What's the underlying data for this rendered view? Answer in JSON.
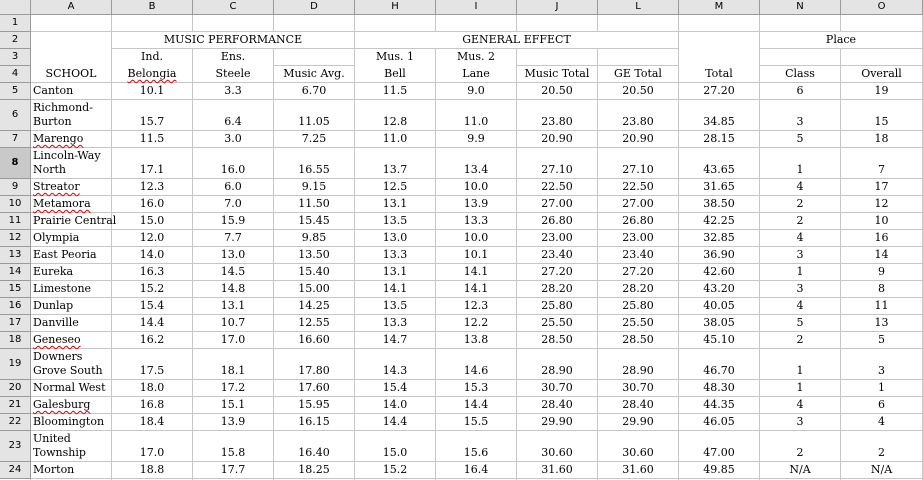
{
  "columns": [
    "A",
    "B",
    "C",
    "D",
    "H",
    "I",
    "J",
    "L",
    "M",
    "N",
    "O"
  ],
  "rows": [
    "1",
    "2",
    "3",
    "4",
    "5",
    "6",
    "7",
    "8",
    "9",
    "10",
    "11",
    "12",
    "13",
    "14",
    "15",
    "16",
    "17",
    "18",
    "19",
    "20",
    "21",
    "22",
    "23",
    "24"
  ],
  "selected_row": "8",
  "headers": {
    "music_performance": "MUSIC PERFORMANCE",
    "general_effect": "GENERAL EFFECT",
    "place": "Place",
    "ind": "Ind.",
    "ens": "Ens.",
    "mus1": "Mus. 1",
    "mus2": "Mus. 2",
    "school": "SCHOOL",
    "belongia": "Belongia",
    "steele": "Steele",
    "music_avg": "Music Avg.",
    "bell": "Bell",
    "lane": "Lane",
    "music_total": "Music Total",
    "ge_total": "GE Total",
    "total": "Total",
    "class": "Class",
    "overall": "Overall"
  },
  "schools": [
    {
      "name": "Canton",
      "b": "10.1",
      "c": "3.3",
      "d": "6.70",
      "h": "11.5",
      "i": "9.0",
      "j": "20.50",
      "l": "20.50",
      "m": "27.20",
      "n": "6",
      "o": "19"
    },
    {
      "name": "Richmond-\nBurton",
      "b": "15.7",
      "c": "6.4",
      "d": "11.05",
      "h": "12.8",
      "i": "11.0",
      "j": "23.80",
      "l": "23.80",
      "m": "34.85",
      "n": "3",
      "o": "15"
    },
    {
      "name": "Marengo",
      "b": "11.5",
      "c": "3.0",
      "d": "7.25",
      "h": "11.0",
      "i": "9.9",
      "j": "20.90",
      "l": "20.90",
      "m": "28.15",
      "n": "5",
      "o": "18"
    },
    {
      "name": "Lincoln-Way\nNorth",
      "b": "17.1",
      "c": "16.0",
      "d": "16.55",
      "h": "13.7",
      "i": "13.4",
      "j": "27.10",
      "l": "27.10",
      "m": "43.65",
      "n": "1",
      "o": "7"
    },
    {
      "name": "Streator",
      "b": "12.3",
      "c": "6.0",
      "d": "9.15",
      "h": "12.5",
      "i": "10.0",
      "j": "22.50",
      "l": "22.50",
      "m": "31.65",
      "n": "4",
      "o": "17"
    },
    {
      "name": "Metamora",
      "b": "16.0",
      "c": "7.0",
      "d": "11.50",
      "h": "13.1",
      "i": "13.9",
      "j": "27.00",
      "l": "27.00",
      "m": "38.50",
      "n": "2",
      "o": "12"
    },
    {
      "name": "Prairie Central",
      "b": "15.0",
      "c": "15.9",
      "d": "15.45",
      "h": "13.5",
      "i": "13.3",
      "j": "26.80",
      "l": "26.80",
      "m": "42.25",
      "n": "2",
      "o": "10"
    },
    {
      "name": "Olympia",
      "b": "12.0",
      "c": "7.7",
      "d": "9.85",
      "h": "13.0",
      "i": "10.0",
      "j": "23.00",
      "l": "23.00",
      "m": "32.85",
      "n": "4",
      "o": "16"
    },
    {
      "name": "East Peoria",
      "b": "14.0",
      "c": "13.0",
      "d": "13.50",
      "h": "13.3",
      "i": "10.1",
      "j": "23.40",
      "l": "23.40",
      "m": "36.90",
      "n": "3",
      "o": "14"
    },
    {
      "name": "Eureka",
      "b": "16.3",
      "c": "14.5",
      "d": "15.40",
      "h": "13.1",
      "i": "14.1",
      "j": "27.20",
      "l": "27.20",
      "m": "42.60",
      "n": "1",
      "o": "9"
    },
    {
      "name": "Limestone",
      "b": "15.2",
      "c": "14.8",
      "d": "15.00",
      "h": "14.1",
      "i": "14.1",
      "j": "28.20",
      "l": "28.20",
      "m": "43.20",
      "n": "3",
      "o": "8"
    },
    {
      "name": "Dunlap",
      "b": "15.4",
      "c": "13.1",
      "d": "14.25",
      "h": "13.5",
      "i": "12.3",
      "j": "25.80",
      "l": "25.80",
      "m": "40.05",
      "n": "4",
      "o": "11"
    },
    {
      "name": "Danville",
      "b": "14.4",
      "c": "10.7",
      "d": "12.55",
      "h": "13.3",
      "i": "12.2",
      "j": "25.50",
      "l": "25.50",
      "m": "38.05",
      "n": "5",
      "o": "13"
    },
    {
      "name": "Geneseo",
      "b": "16.2",
      "c": "17.0",
      "d": "16.60",
      "h": "14.7",
      "i": "13.8",
      "j": "28.50",
      "l": "28.50",
      "m": "45.10",
      "n": "2",
      "o": "5"
    },
    {
      "name": "Downers\nGrove South",
      "b": "17.5",
      "c": "18.1",
      "d": "17.80",
      "h": "14.3",
      "i": "14.6",
      "j": "28.90",
      "l": "28.90",
      "m": "46.70",
      "n": "1",
      "o": "3"
    },
    {
      "name": "Normal West",
      "b": "18.0",
      "c": "17.2",
      "d": "17.60",
      "h": "15.4",
      "i": "15.3",
      "j": "30.70",
      "l": "30.70",
      "m": "48.30",
      "n": "1",
      "o": "1"
    },
    {
      "name": "Galesburg",
      "b": "16.8",
      "c": "15.1",
      "d": "15.95",
      "h": "14.0",
      "i": "14.4",
      "j": "28.40",
      "l": "28.40",
      "m": "44.35",
      "n": "4",
      "o": "6"
    },
    {
      "name": "Bloomington",
      "b": "18.4",
      "c": "13.9",
      "d": "16.15",
      "h": "14.4",
      "i": "15.5",
      "j": "29.90",
      "l": "29.90",
      "m": "46.05",
      "n": "3",
      "o": "4"
    },
    {
      "name": "United\nTownship",
      "b": "17.0",
      "c": "15.8",
      "d": "16.40",
      "h": "15.0",
      "i": "15.6",
      "j": "30.60",
      "l": "30.60",
      "m": "47.00",
      "n": "2",
      "o": "2"
    },
    {
      "name": "Morton",
      "b": "18.8",
      "c": "17.7",
      "d": "18.25",
      "h": "15.2",
      "i": "16.4",
      "j": "31.60",
      "l": "31.60",
      "m": "49.85",
      "n": "N/A",
      "o": "N/A"
    }
  ]
}
